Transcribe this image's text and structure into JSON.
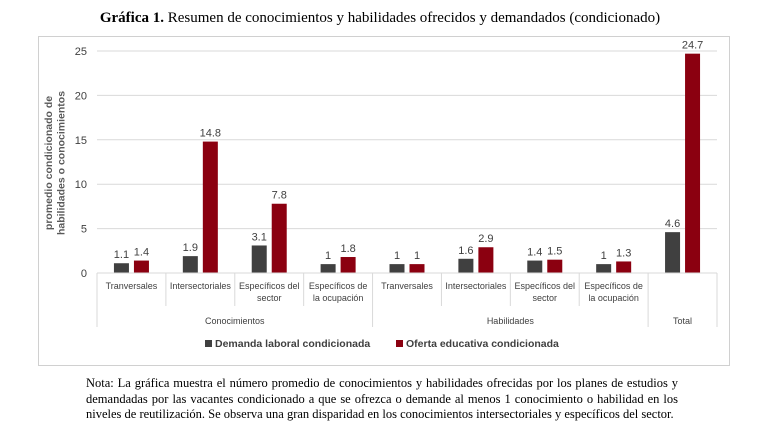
{
  "title": {
    "bold": "Gráfica 1.",
    "text": " Resumen de conocimientos y habilidades ofrecidos y demandados (condicionado)"
  },
  "note": "Nota: La gráfica muestra el número promedio de conocimientos y habilidades ofrecidas por los planes de estudios y demandadas por las vacantes condicionado a que se ofrezca o demande al menos 1 conocimiento o habilidad en los niveles de reutilización. Se observa una gran disparidad en los conocimientos intersectoriales y específicos del sector.",
  "chart_data": {
    "type": "bar",
    "ylabel_lines": [
      "promedio condicionado de",
      "habilidades o conocimientos"
    ],
    "ylim": [
      0,
      25
    ],
    "yticks": [
      0,
      5,
      10,
      15,
      20,
      25
    ],
    "grid": true,
    "legend_position": "bottom",
    "categories": [
      {
        "lines": [
          "Tranversales"
        ],
        "group": "Conocimientos"
      },
      {
        "lines": [
          "Intersectoriales"
        ],
        "group": "Conocimientos"
      },
      {
        "lines": [
          "Específicos del",
          "sector"
        ],
        "group": "Conocimientos"
      },
      {
        "lines": [
          "Específicos de",
          "la ocupación"
        ],
        "group": "Conocimientos"
      },
      {
        "lines": [
          "Tranversales"
        ],
        "group": "Habilidades"
      },
      {
        "lines": [
          "Intersectoriales"
        ],
        "group": "Habilidades"
      },
      {
        "lines": [
          "Específicos del",
          "sector"
        ],
        "group": "Habilidades"
      },
      {
        "lines": [
          "Específicos de",
          "la ocupación"
        ],
        "group": "Habilidades"
      },
      {
        "lines": [
          ""
        ],
        "group": "Total"
      }
    ],
    "groups": [
      "Conocimientos",
      "Habilidades",
      "Total"
    ],
    "series": [
      {
        "name": "Demanda laboral condicionada",
        "color": "#404040",
        "values": [
          1.1,
          1.9,
          3.1,
          1,
          1,
          1.6,
          1.4,
          1,
          4.6
        ],
        "labels": [
          "1.1",
          "1.9",
          "3.1",
          "1",
          "1",
          "1.6",
          "1.4",
          "1",
          "4.6"
        ]
      },
      {
        "name": "Oferta educativa condicionada",
        "color": "#8b0010",
        "values": [
          1.4,
          14.8,
          7.8,
          1.8,
          1,
          2.9,
          1.5,
          1.3,
          24.7
        ],
        "labels": [
          "1.4",
          "14.8",
          "7.8",
          "1.8",
          "1",
          "2.9",
          "1.5",
          "1.3",
          "24.7"
        ]
      }
    ]
  }
}
